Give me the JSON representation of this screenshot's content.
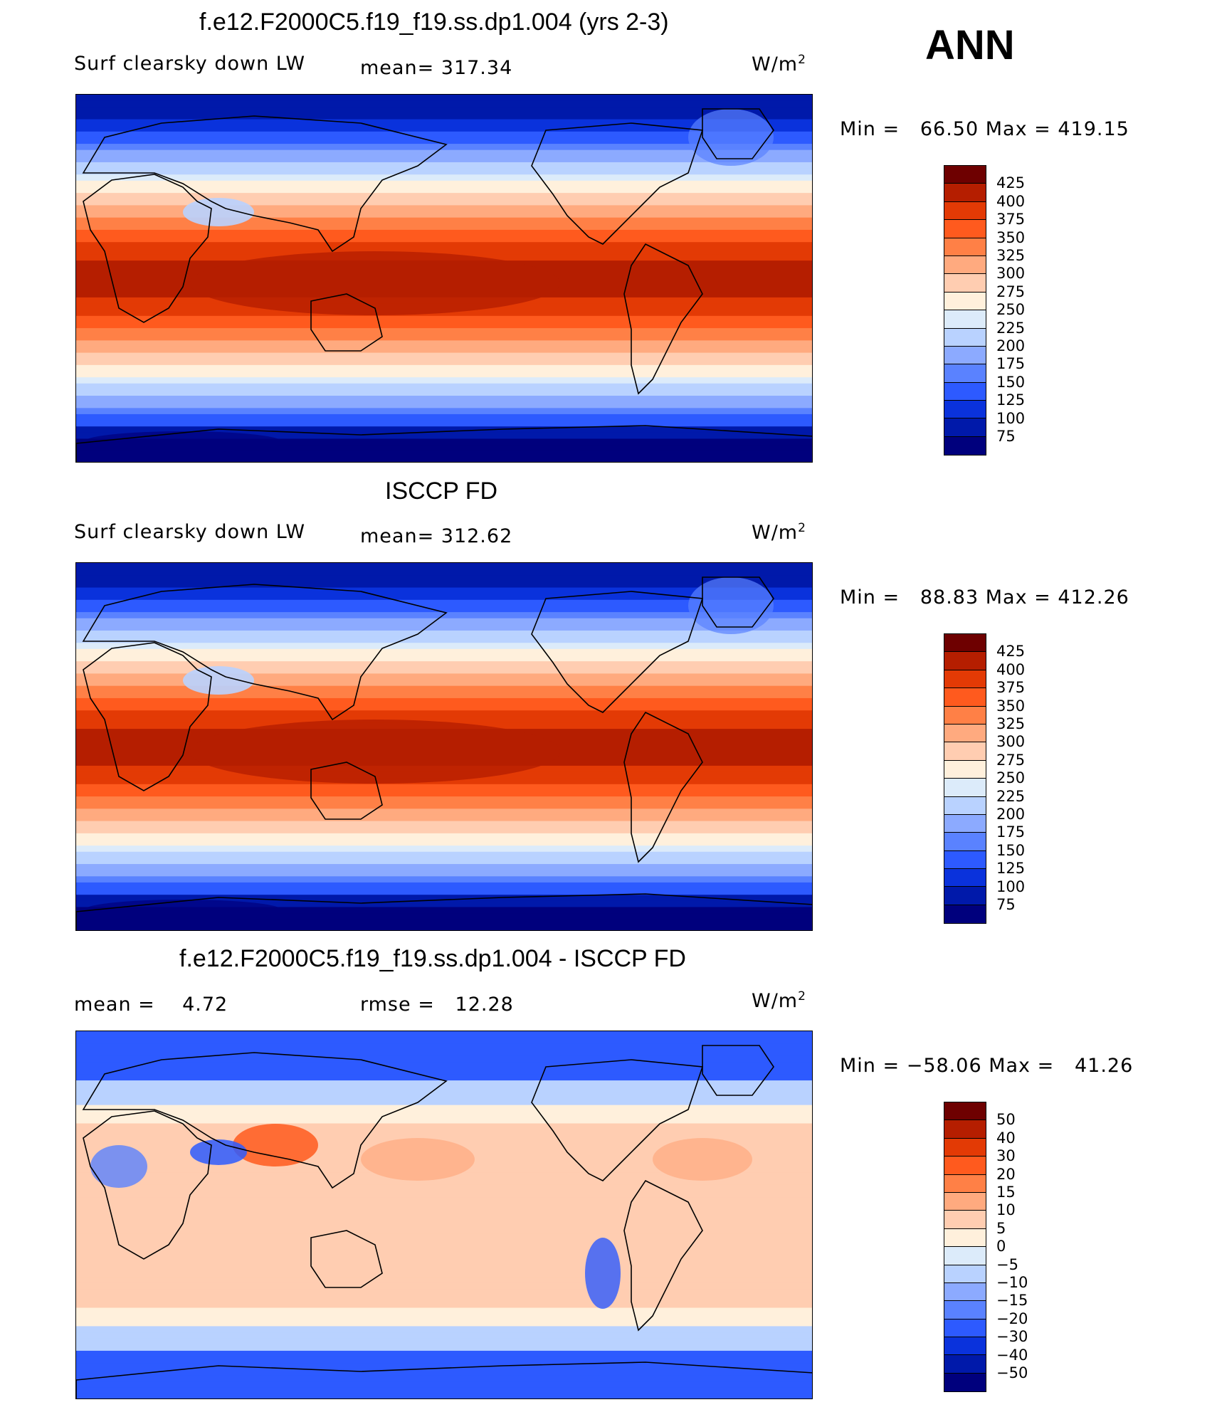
{
  "season": "ANN",
  "panels": [
    {
      "title": "f.e12.F2000C5.f19_f19.ss.dp1.004 (yrs 2-3)",
      "left_label": "Surf clearsky down LW",
      "stat_label": "mean= 317.34",
      "units": "W/m",
      "units_sup": "2",
      "minmax": "Min =   66.50 Max = 419.15",
      "colorbar": {
        "labels": [
          "425",
          "400",
          "375",
          "350",
          "325",
          "300",
          "275",
          "250",
          "225",
          "200",
          "175",
          "150",
          "125",
          "100",
          "75"
        ],
        "colors": [
          "#6e0000",
          "#b51e00",
          "#e33a05",
          "#ff5a1e",
          "#ff8046",
          "#ffaa7f",
          "#ffcdb1",
          "#fff0dc",
          "#dcebfa",
          "#b9d2ff",
          "#8caaff",
          "#5a82ff",
          "#2d5aff",
          "#0a32dc",
          "#0019aa",
          "#00007d"
        ]
      },
      "map_style": "temp"
    },
    {
      "title": "ISCCP FD",
      "left_label": "Surf clearsky down LW",
      "stat_label": "mean= 312.62",
      "units": "W/m",
      "units_sup": "2",
      "minmax": "Min =   88.83 Max = 412.26",
      "colorbar": {
        "labels": [
          "425",
          "400",
          "375",
          "350",
          "325",
          "300",
          "275",
          "250",
          "225",
          "200",
          "175",
          "150",
          "125",
          "100",
          "75"
        ],
        "colors": [
          "#6e0000",
          "#b51e00",
          "#e33a05",
          "#ff5a1e",
          "#ff8046",
          "#ffaa7f",
          "#ffcdb1",
          "#fff0dc",
          "#dcebfa",
          "#b9d2ff",
          "#8caaff",
          "#5a82ff",
          "#2d5aff",
          "#0a32dc",
          "#0019aa",
          "#00007d"
        ]
      },
      "map_style": "temp"
    },
    {
      "title": "f.e12.F2000C5.f19_f19.ss.dp1.004 - ISCCP FD",
      "left_label": "mean =    4.72",
      "stat_label": "rmse =   12.28",
      "units": "W/m",
      "units_sup": "2",
      "minmax": "Min = −58.06 Max =   41.26",
      "colorbar": {
        "labels": [
          "50",
          "40",
          "30",
          "20",
          "15",
          "10",
          "5",
          "0",
          "−5",
          "−10",
          "−15",
          "−20",
          "−30",
          "−40",
          "−50"
        ],
        "colors": [
          "#6e0000",
          "#b51e00",
          "#e33a05",
          "#ff5a1e",
          "#ff8046",
          "#ffaa7f",
          "#ffcdb1",
          "#fff0dc",
          "#dcebfa",
          "#b9d2ff",
          "#8caaff",
          "#5a82ff",
          "#2d5aff",
          "#0a32dc",
          "#0019aa",
          "#00007d"
        ]
      },
      "map_style": "diff"
    }
  ]
}
